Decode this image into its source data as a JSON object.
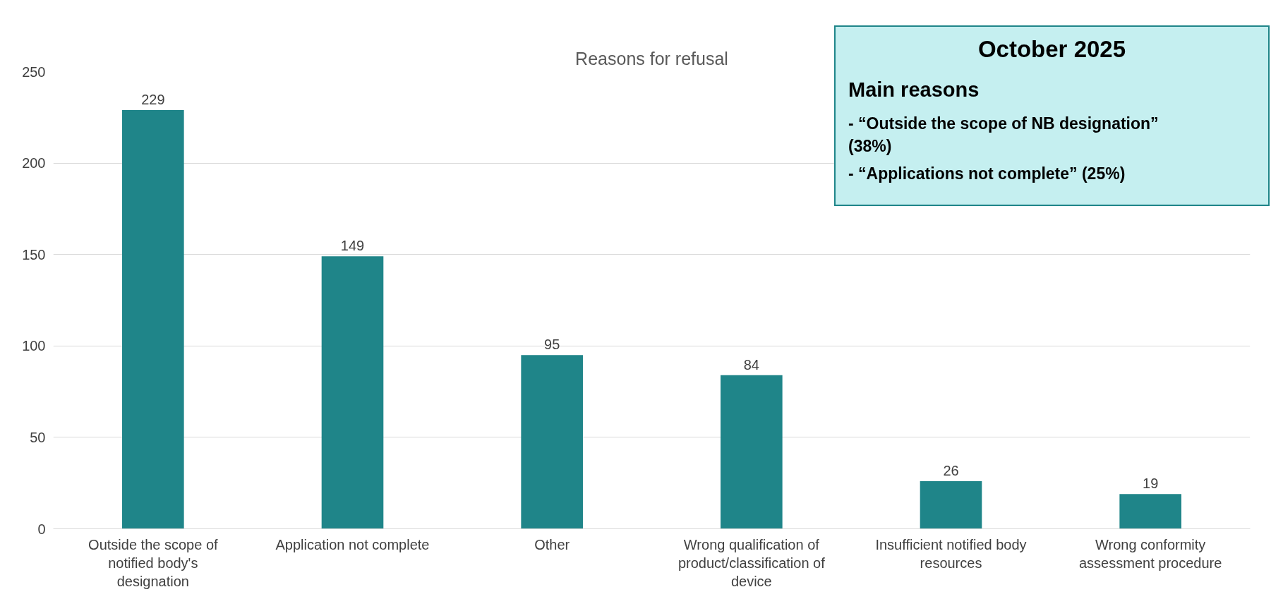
{
  "chart_data": {
    "type": "bar",
    "title": "Reasons for refusal",
    "categories": [
      "Outside the scope of notified body's designation",
      "Application not complete",
      "Other",
      "Wrong qualification of product/classification of device",
      "Insufficient notified body resources",
      "Wrong conformity assessment procedure"
    ],
    "values": [
      229,
      149,
      95,
      84,
      26,
      19
    ],
    "color": "#1f8589",
    "ylim": [
      0,
      250
    ],
    "yticks": [
      0,
      50,
      100,
      150,
      200,
      250
    ],
    "grid": "y",
    "data_labels": true,
    "annotations": [
      "October 2025",
      "Main reasons",
      "- “Outside the scope of NB designation” (38%)",
      "- “Applications not complete” (25%)"
    ]
  }
}
